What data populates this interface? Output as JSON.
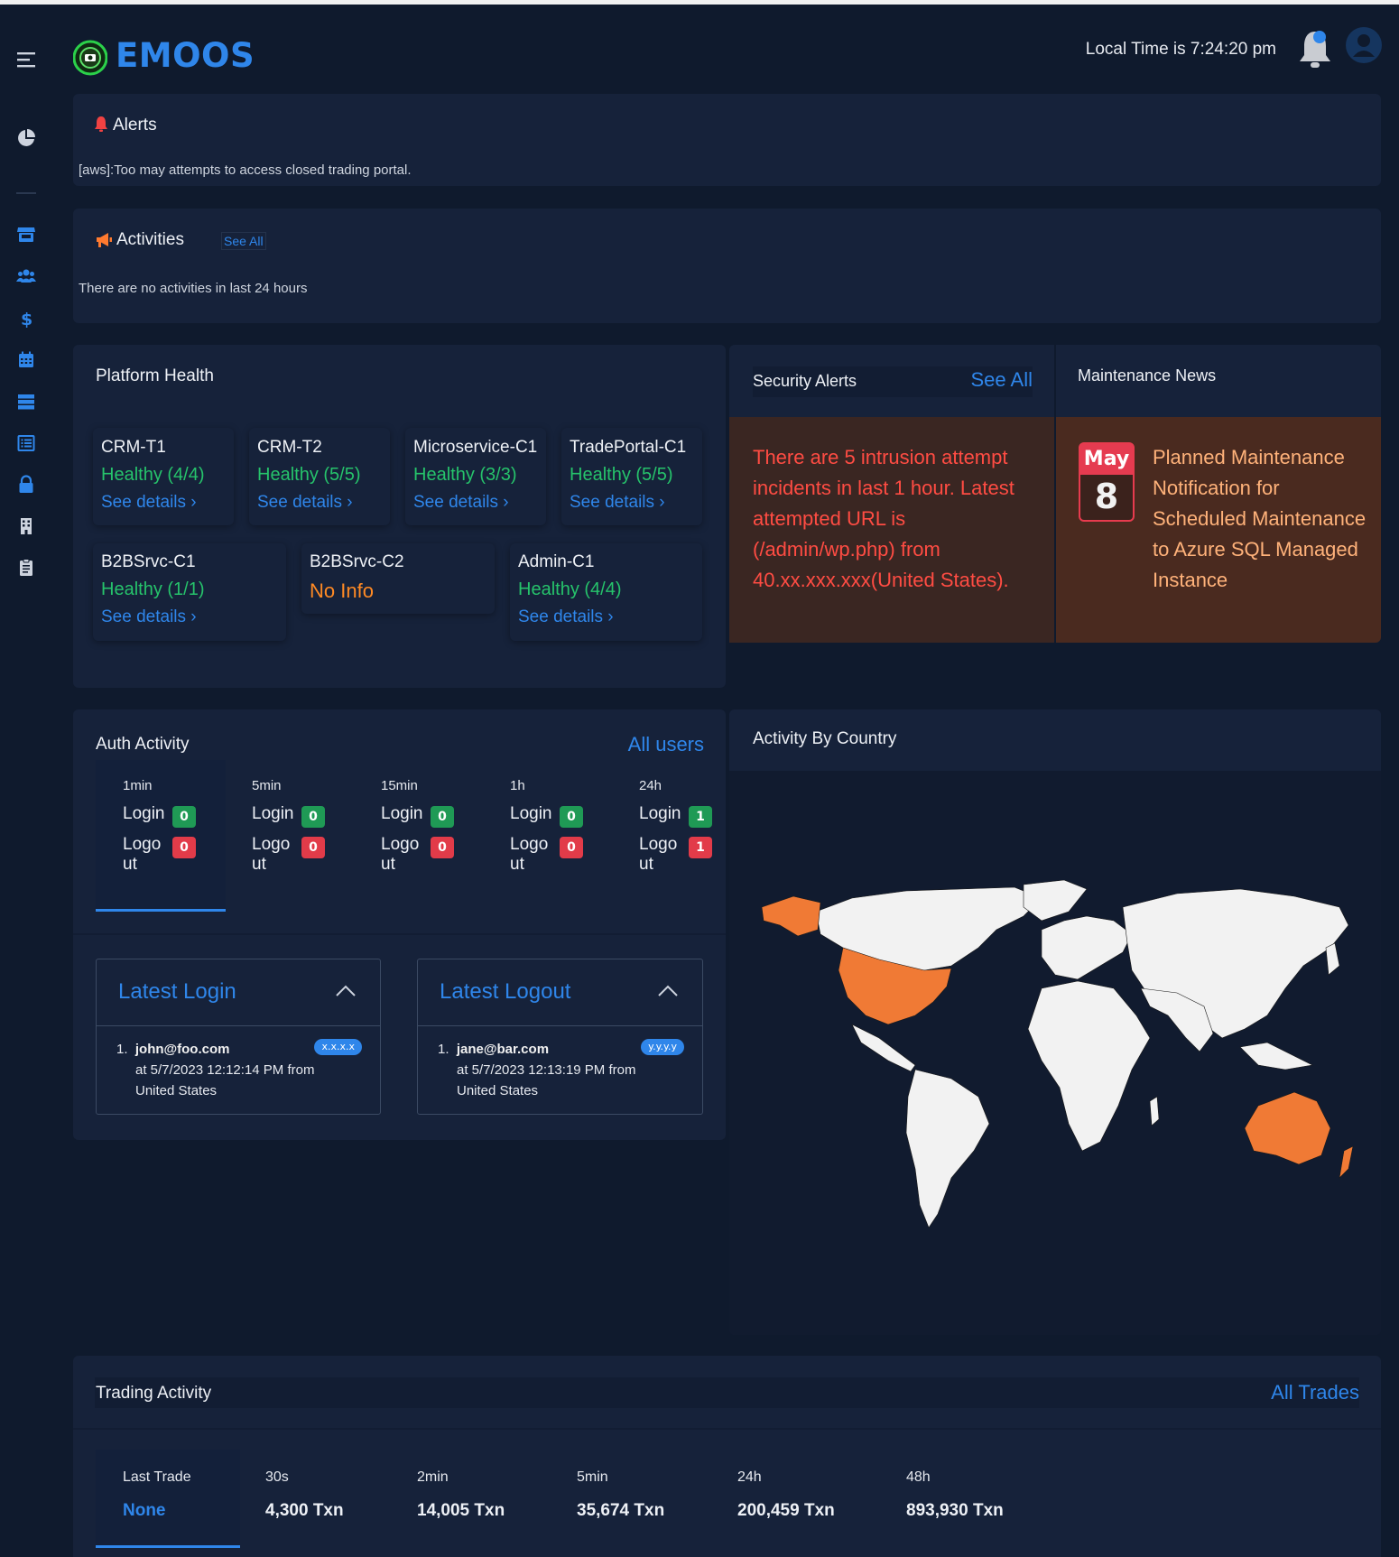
{
  "header": {
    "brand": "EMOOS",
    "local_time": "Local Time is 7:24:20 pm"
  },
  "sidebar": {
    "icons": [
      "menu-icon",
      "pie-chart-icon",
      "store-icon",
      "users-icon",
      "dollar-icon",
      "calendar-icon",
      "server-icon",
      "list-icon",
      "lock-icon",
      "building-icon",
      "clipboard-icon"
    ]
  },
  "alerts": {
    "title": "Alerts",
    "message": "[aws]:Too may attempts to access closed trading portal."
  },
  "activities": {
    "title": "Activities",
    "see_all": "See All",
    "message": "There are no activities in last 24 hours"
  },
  "platform_health": {
    "title": "Platform Health",
    "see_details": "See details",
    "items": [
      {
        "name": "CRM-T1",
        "status": "Healthy (4/4)",
        "healthy": true
      },
      {
        "name": "CRM-T2",
        "status": "Healthy (5/5)",
        "healthy": true
      },
      {
        "name": "Microservice-C1",
        "status": "Healthy (3/3)",
        "healthy": true
      },
      {
        "name": "TradePortal-C1",
        "status": "Healthy (5/5)",
        "healthy": true
      },
      {
        "name": "B2BSrvc-C1",
        "status": "Healthy (1/1)",
        "healthy": true
      },
      {
        "name": "B2BSrvc-C2",
        "status": "No Info",
        "healthy": false
      },
      {
        "name": "Admin-C1",
        "status": "Healthy (4/4)",
        "healthy": true
      }
    ]
  },
  "security_alerts": {
    "title": "Security Alerts",
    "see_all": "See All",
    "message": "There are 5 intrusion attempt incidents in last 1 hour. Latest attempted URL is (/admin/wp.php) from 40.xx.xxx.xxx(United States)."
  },
  "maintenance": {
    "title": "Maintenance News",
    "month": "May",
    "day": "8",
    "message": "Planned Maintenance Notification for Scheduled Maintenance to Azure SQL Managed Instance"
  },
  "auth_activity": {
    "title": "Auth Activity",
    "all_users": "All users",
    "login_label": "Login",
    "logout_label_1": "Logo",
    "logout_label_2": "ut",
    "periods": [
      {
        "label": "1min",
        "login": "0",
        "logout": "0"
      },
      {
        "label": "5min",
        "login": "0",
        "logout": "0"
      },
      {
        "label": "15min",
        "login": "0",
        "logout": "0"
      },
      {
        "label": "1h",
        "login": "0",
        "logout": "0"
      },
      {
        "label": "24h",
        "login": "1",
        "logout": "1"
      }
    ],
    "latest_login": {
      "title": "Latest Login",
      "index": "1.",
      "user": "john@foo.com",
      "badge": "x.x.x.x",
      "line2": "at 5/7/2023 12:12:14 PM from",
      "line3": "United States"
    },
    "latest_logout": {
      "title": "Latest Logout",
      "index": "1.",
      "user": "jane@bar.com",
      "badge": "y.y.y.y",
      "line2": "at 5/7/2023 12:13:19 PM from",
      "line3": "United States"
    }
  },
  "activity_by_country": {
    "title": "Activity By Country",
    "highlight_color": "#f07a35",
    "highlighted": [
      "United States",
      "Alaska",
      "Australia",
      "New Zealand"
    ]
  },
  "trading_activity": {
    "title": "Trading Activity",
    "all_trades": "All Trades",
    "columns": [
      {
        "label": "Last Trade",
        "value": "None"
      },
      {
        "label": "30s",
        "value": "4,300 Txn"
      },
      {
        "label": "2min",
        "value": "14,005 Txn"
      },
      {
        "label": "5min",
        "value": "35,674 Txn"
      },
      {
        "label": "24h",
        "value": "200,459 Txn"
      },
      {
        "label": "48h",
        "value": "893,930 Txn"
      }
    ]
  },
  "colors": {
    "background": "#0f1a2d",
    "card": "#16223a",
    "accent": "#2f86ea",
    "healthy": "#26c36b",
    "no_info": "#ff8a24",
    "danger": "#e23b49"
  }
}
